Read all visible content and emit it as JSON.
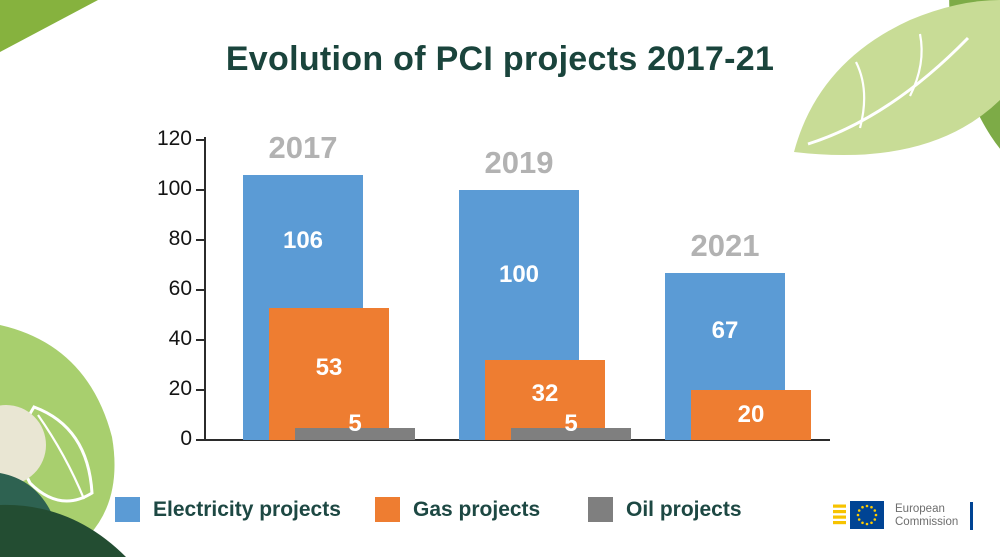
{
  "title": "Evolution of PCI projects 2017-21",
  "chart_data": {
    "type": "bar",
    "categories": [
      "2017",
      "2019",
      "2021"
    ],
    "series": [
      {
        "name": "Electricity projects",
        "color": "#5b9bd5",
        "values": [
          106,
          100,
          67
        ]
      },
      {
        "name": "Gas projects",
        "color": "#ee7d31",
        "values": [
          53,
          32,
          20
        ]
      },
      {
        "name": "Oil projects",
        "color": "#7f7f7f",
        "values": [
          5,
          5,
          0
        ]
      }
    ],
    "ylim": [
      0,
      120
    ],
    "yticks": [
      0,
      20,
      40,
      60,
      80,
      100,
      120
    ],
    "grid": false,
    "legend_position": "bottom",
    "value_labels": true
  },
  "logo": {
    "line1": "European",
    "line2": "Commission"
  },
  "colors": {
    "title_text": "#1a443c",
    "axis": "#2b2b2b",
    "year_label": "#b2b2b2",
    "legend_text": "#1d4843",
    "flag_blue": "#004494",
    "star_gold": "#ffcc00",
    "leaf_green_light": "#c8dc96",
    "leaf_green_mid": "#86b23e",
    "leaf_green_dark": "#234d32",
    "teal_blob": "#2e6251"
  }
}
